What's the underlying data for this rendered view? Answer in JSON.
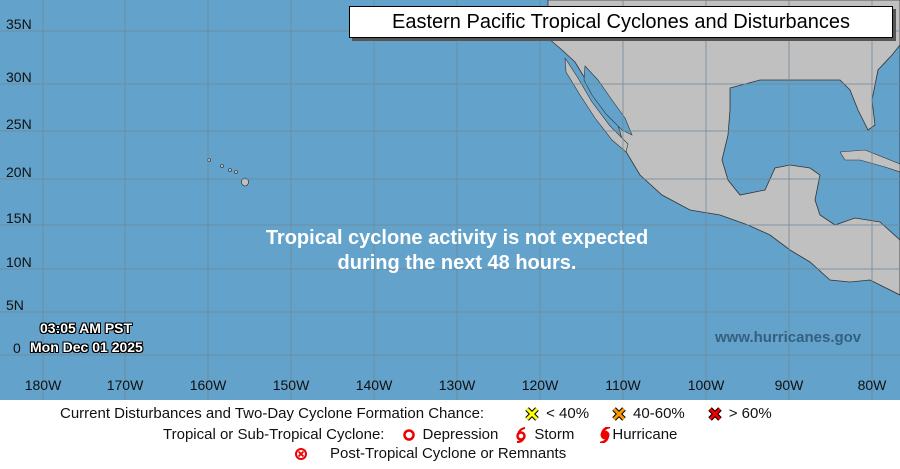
{
  "title": "Eastern Pacific Tropical Cyclones and Disturbances",
  "message": [
    "Tropical cyclone activity is not expected",
    "during the next 48 hours."
  ],
  "timestamp": {
    "time": "03:05 AM PST",
    "date": "Mon Dec 01 2025"
  },
  "website": "www.hurricanes.gov",
  "latitude_labels": [
    "35N",
    "30N",
    "25N",
    "20N",
    "15N",
    "10N",
    "5N",
    "0"
  ],
  "longitude_labels": [
    "180W",
    "170W",
    "160W",
    "150W",
    "140W",
    "130W",
    "120W",
    "110W",
    "100W",
    "90W",
    "80W"
  ],
  "colors": {
    "ocean": "#62a2cb",
    "land": "#c0c0c0",
    "grid": "#6f8899",
    "low": "#ffff00",
    "medium": "#ff9900",
    "high": "#ee0000",
    "cyclone": "#ee0000"
  },
  "legend": {
    "disturbances_label": "Current Disturbances and Two-Day Cyclone Formation Chance:",
    "chance_low": "< 40%",
    "chance_medium": "40-60%",
    "chance_high": "> 60%",
    "cyclone_label": "Tropical or Sub-Tropical Cyclone:",
    "depression": "Depression",
    "storm": "Storm",
    "hurricane": "Hurricane",
    "post_tropical": "Post-Tropical Cyclone or Remnants"
  }
}
